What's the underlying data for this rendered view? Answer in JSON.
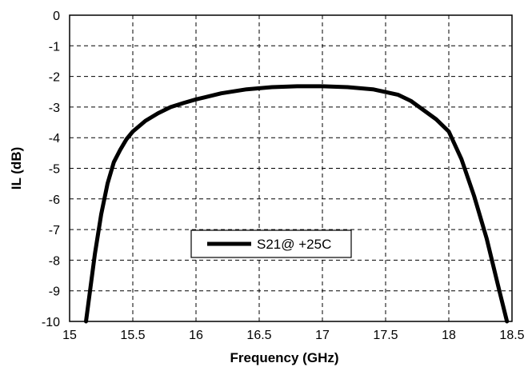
{
  "chart_data": {
    "type": "line",
    "xlabel": "Frequency (GHz)",
    "ylabel": "IL (dB)",
    "xlim": [
      15,
      18.5
    ],
    "ylim": [
      -10,
      0
    ],
    "xticks": [
      "15",
      "15.5",
      "16",
      "16.5",
      "17",
      "17.5",
      "18",
      "18.5"
    ],
    "yticks": [
      "0",
      "-1",
      "-2",
      "-3",
      "-4",
      "-5",
      "-6",
      "-7",
      "-8",
      "-9",
      "-10"
    ],
    "grid": true,
    "legend_position": "lower-center",
    "series": [
      {
        "name": "S21@ +25C",
        "color": "#000000",
        "x": [
          15.13,
          15.2,
          15.25,
          15.3,
          15.35,
          15.4,
          15.45,
          15.5,
          15.6,
          15.7,
          15.8,
          15.9,
          16.0,
          16.2,
          16.4,
          16.6,
          16.8,
          17.0,
          17.2,
          17.4,
          17.6,
          17.7,
          17.8,
          17.9,
          18.0,
          18.1,
          18.2,
          18.3,
          18.4,
          18.46
        ],
        "y": [
          -10.0,
          -7.8,
          -6.5,
          -5.5,
          -4.8,
          -4.4,
          -4.05,
          -3.8,
          -3.45,
          -3.2,
          -3.0,
          -2.87,
          -2.75,
          -2.55,
          -2.42,
          -2.35,
          -2.32,
          -2.32,
          -2.35,
          -2.42,
          -2.6,
          -2.8,
          -3.1,
          -3.4,
          -3.8,
          -4.7,
          -5.9,
          -7.3,
          -9.0,
          -10.0
        ]
      }
    ]
  }
}
